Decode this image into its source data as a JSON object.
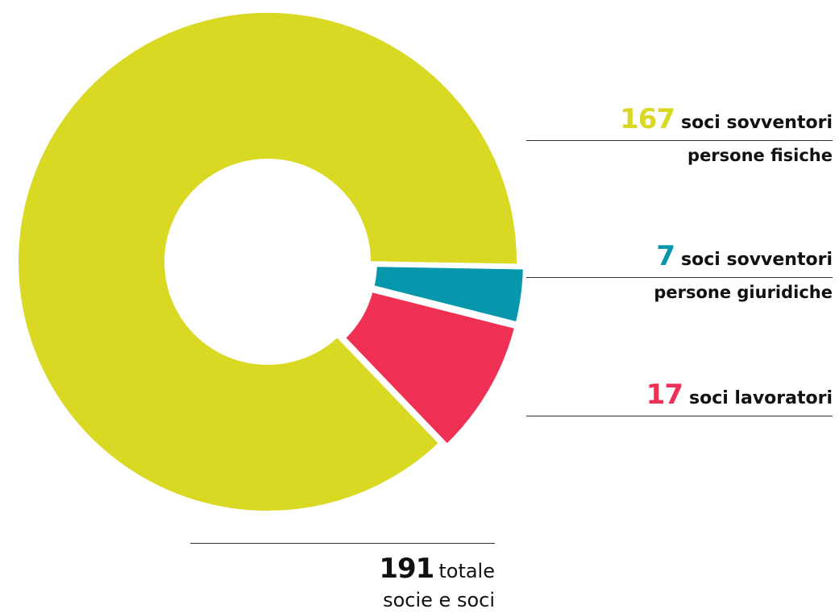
{
  "chart_data": {
    "type": "pie",
    "categories": [
      "soci sovventori persone fisiche",
      "soci sovventori persone giuridiche",
      "soci lavoratori"
    ],
    "series": [
      {
        "values": [
          167,
          7,
          17
        ]
      }
    ],
    "colors": [
      "#d9d822",
      "#0797ad",
      "#ef3054"
    ],
    "donut": true,
    "legend_placement": "right"
  },
  "legend": [
    {
      "value": "167",
      "label": "soci sovventori",
      "sub": "persone fisiche",
      "color": "#d9d822"
    },
    {
      "value": "7",
      "label": "soci sovventori",
      "sub": "persone giuridiche",
      "color": "#0797ad"
    },
    {
      "value": "17",
      "label": "soci lavoratori",
      "sub": "",
      "color": "#ef3054"
    }
  ],
  "total": {
    "value": "191",
    "label": "totale",
    "sub": "socie e soci"
  }
}
